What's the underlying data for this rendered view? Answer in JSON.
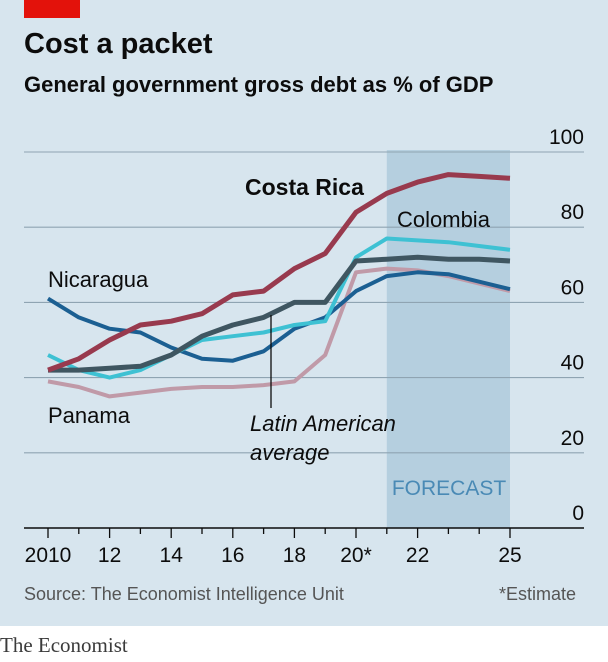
{
  "brand_label": "The Economist",
  "source": "Source: The Economist Intelligence Unit",
  "note": "*Estimate",
  "chart_data": {
    "type": "line",
    "title": "Cost a packet",
    "subtitle": "General government gross debt as % of GDP",
    "x": [
      2010,
      2011,
      2012,
      2013,
      2014,
      2015,
      2016,
      2017,
      2018,
      2019,
      2020,
      2021,
      2022,
      2023,
      2024,
      2025
    ],
    "x_tick_values": [
      2010,
      2012,
      2014,
      2016,
      2018,
      2020,
      2022,
      2025
    ],
    "x_tick_labels": [
      "2010",
      "12",
      "14",
      "16",
      "18",
      "20*",
      "22",
      "25"
    ],
    "y_ticks": [
      0,
      20,
      40,
      60,
      80,
      100
    ],
    "ylim": [
      0,
      100
    ],
    "xlim": [
      2010,
      2025
    ],
    "grid": true,
    "y_axis_side": "right",
    "forecast_start": 2021,
    "forecast_label": "FORECAST",
    "series": [
      {
        "name": "Costa Rica",
        "color": "#983a4e",
        "values": [
          42,
          45,
          50,
          54,
          55,
          57,
          62,
          63,
          69,
          73,
          84,
          89,
          92,
          94,
          93.5,
          93
        ]
      },
      {
        "name": "Colombia",
        "color": "#3ec1d3",
        "values": [
          46,
          42,
          40,
          42,
          46,
          50,
          51,
          52,
          54,
          55,
          72,
          77,
          76.5,
          76,
          75,
          74
        ]
      },
      {
        "name": "Nicaragua",
        "color": "#1b5f92",
        "values": [
          61,
          56,
          53,
          52,
          48,
          45,
          44.5,
          47,
          53,
          56,
          63,
          67,
          68,
          67.5,
          65.5,
          63.5
        ]
      },
      {
        "name": "Panama",
        "color": "#c09aa8",
        "values": [
          39,
          37.5,
          35,
          36,
          37,
          37.5,
          37.5,
          38,
          39,
          46,
          68,
          69,
          68.5,
          67,
          65,
          63
        ]
      },
      {
        "name": "Latin American average",
        "color": "#3f5661",
        "values": [
          42,
          42,
          42.5,
          43,
          46,
          51,
          54,
          56,
          60,
          60,
          71,
          71.5,
          72,
          71.5,
          71.5,
          71
        ]
      }
    ],
    "labels": {
      "costa_rica": "Costa Rica",
      "colombia": "Colombia",
      "nicaragua": "Nicaragua",
      "panama": "Panama",
      "average_line1": "Latin American",
      "average_line2": "average"
    }
  }
}
